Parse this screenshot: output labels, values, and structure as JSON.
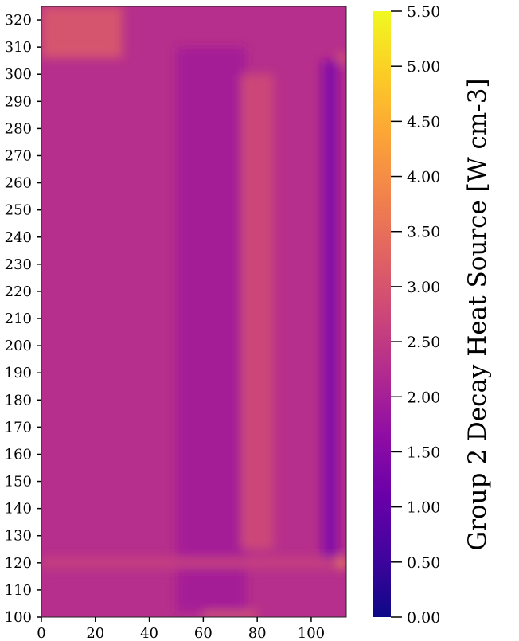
{
  "chart_data": {
    "type": "heatmap",
    "x_ticks": [
      0,
      20,
      40,
      60,
      80,
      100
    ],
    "xlim": [
      0,
      113
    ],
    "y_ticks": [
      100,
      110,
      120,
      130,
      140,
      150,
      160,
      170,
      180,
      190,
      200,
      210,
      220,
      230,
      240,
      250,
      260,
      270,
      280,
      290,
      300,
      310,
      320
    ],
    "ylim": [
      100,
      325
    ],
    "colorbar": {
      "title": "Group 2 Decay Heat Source [W cm-3]",
      "ticks": [
        "0.00",
        "0.50",
        "1.00",
        "1.50",
        "2.00",
        "2.50",
        "3.00",
        "3.50",
        "4.00",
        "4.50",
        "5.00",
        "5.50"
      ],
      "range": [
        0,
        5.5
      ],
      "colormap": "plasma"
    },
    "field": {
      "background": 2.3,
      "regions": [
        {
          "x": [
            50,
            76
          ],
          "y": [
            102,
            310
          ],
          "value": 2.0,
          "note": "central lower-value band"
        },
        {
          "x": [
            74,
            86
          ],
          "y": [
            125,
            300
          ],
          "value": 2.75,
          "note": "elevated ridge"
        },
        {
          "x": [
            104,
            110
          ],
          "y": [
            120,
            305
          ],
          "value": 1.5,
          "note": "right low column"
        },
        {
          "x": [
            0,
            30
          ],
          "y": [
            306,
            325
          ],
          "value": 3.0,
          "note": "top-left elevated"
        },
        {
          "x": [
            0,
            110
          ],
          "y": [
            118,
            122
          ],
          "value": 2.6,
          "note": "horizontal band near 120"
        },
        {
          "x": [
            110,
            113
          ],
          "y": [
            118,
            122
          ],
          "value": 3.7,
          "note": "right edge hot spot"
        },
        {
          "x": [
            110,
            113
          ],
          "y": [
            304,
            308
          ],
          "value": 3.0,
          "note": "right edge top spot"
        },
        {
          "x": [
            60,
            80
          ],
          "y": [
            100,
            102
          ],
          "value": 3.2,
          "note": "bottom edge"
        }
      ]
    }
  }
}
